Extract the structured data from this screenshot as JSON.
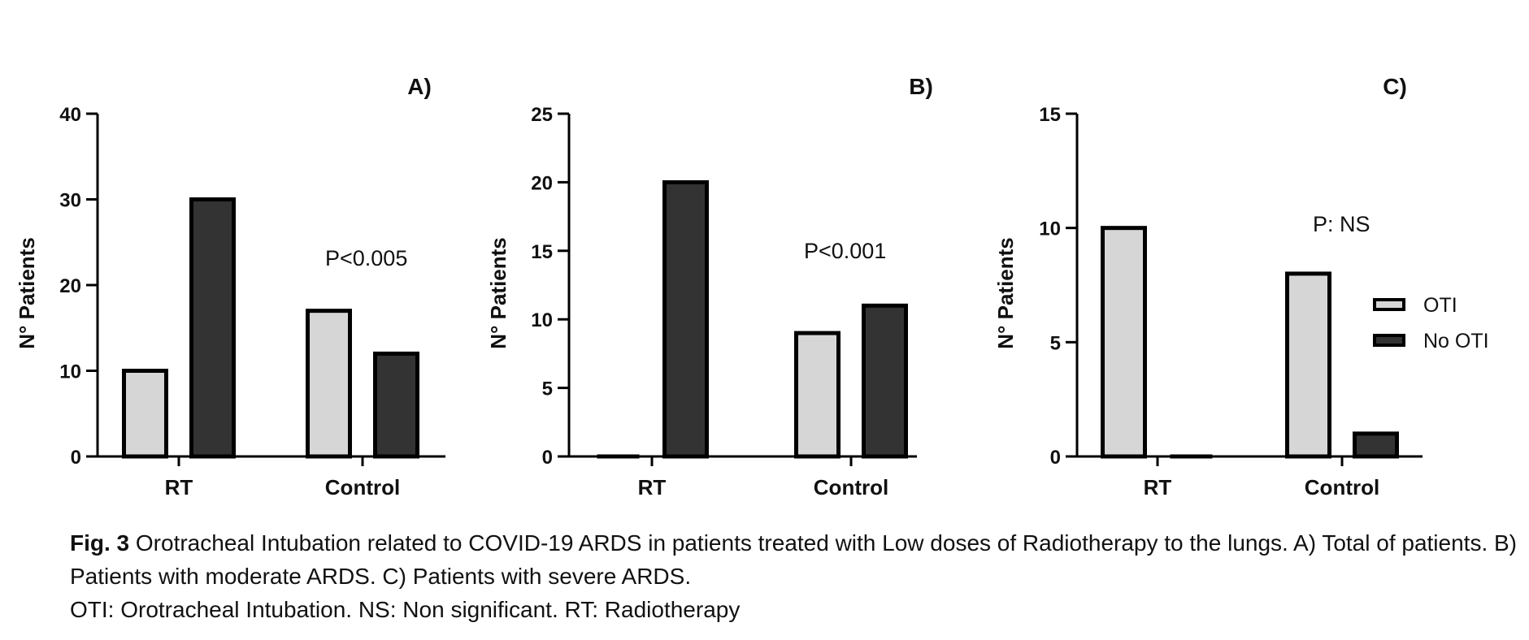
{
  "colors": {
    "OTI": "#d6d6d6",
    "No OTI": "#333333",
    "outline": "#000000"
  },
  "legend": {
    "placement": "right of panel C",
    "items": [
      {
        "label": "OTI",
        "color": "#d6d6d6"
      },
      {
        "label": "No OTI",
        "color": "#333333"
      }
    ]
  },
  "chart_data": [
    {
      "type": "bar",
      "panel_label": "A)",
      "annotation": "P<0.005",
      "ylabel": "N° Patients",
      "ylim": [
        0,
        40
      ],
      "yticks": [
        0,
        10,
        20,
        30,
        40
      ],
      "categories": [
        "RT",
        "Control"
      ],
      "series": [
        {
          "name": "OTI",
          "values": [
            10,
            17
          ]
        },
        {
          "name": "No OTI",
          "values": [
            30,
            12
          ]
        }
      ],
      "grid": false
    },
    {
      "type": "bar",
      "panel_label": "B)",
      "annotation": "P<0.001",
      "ylabel": "N° Patients",
      "ylim": [
        0,
        25
      ],
      "yticks": [
        0,
        5,
        10,
        15,
        20,
        25
      ],
      "categories": [
        "RT",
        "Control"
      ],
      "series": [
        {
          "name": "OTI",
          "values": [
            0,
            9
          ]
        },
        {
          "name": "No OTI",
          "values": [
            20,
            11
          ]
        }
      ],
      "grid": false
    },
    {
      "type": "bar",
      "panel_label": "C)",
      "annotation": "P: NS",
      "ylabel": "N° Patients",
      "ylim": [
        0,
        15
      ],
      "yticks": [
        0,
        5,
        10,
        15
      ],
      "categories": [
        "RT",
        "Control"
      ],
      "series": [
        {
          "name": "OTI",
          "values": [
            10,
            8
          ]
        },
        {
          "name": "No OTI",
          "values": [
            0,
            1
          ]
        }
      ],
      "grid": false,
      "legend": true
    }
  ],
  "caption": {
    "fig_no": "Fig. 3",
    "text": " Orotracheal Intubation related to COVID-19 ARDS in patients treated with Low doses of Radiotherapy to the lungs. A) Total of patients. B) Patients with moderate ARDS. C) Patients with severe ARDS.",
    "abbreviations": "OTI: Orotracheal Intubation. NS: Non significant. RT: Radiotherapy"
  }
}
